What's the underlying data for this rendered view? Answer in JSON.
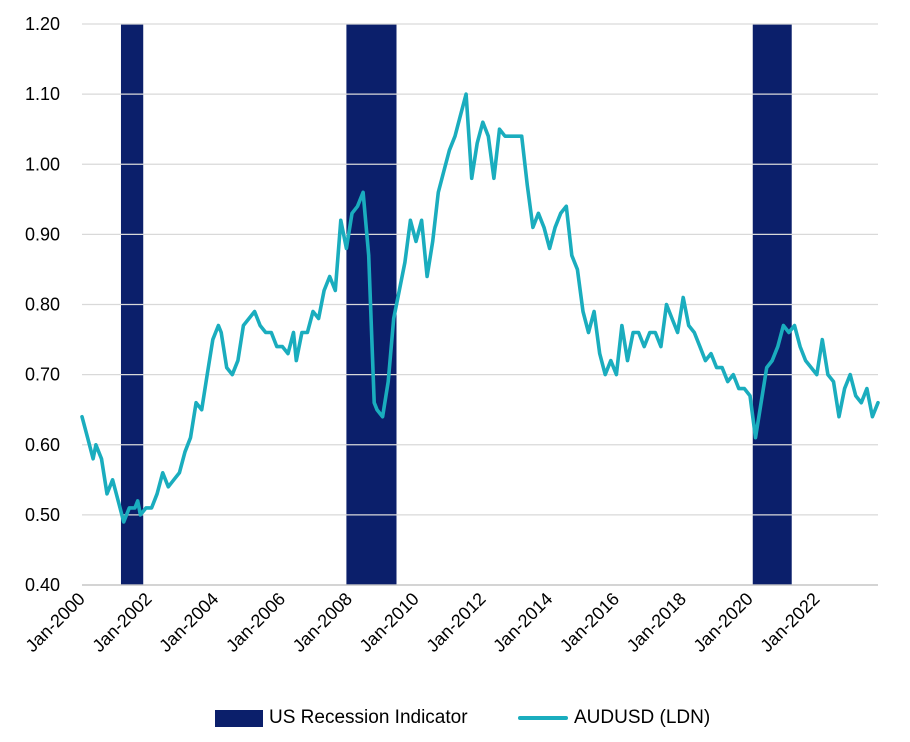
{
  "chart_data": {
    "type": "line",
    "title": "",
    "xlabel": "",
    "ylabel": "",
    "ylim": [
      0.4,
      1.2
    ],
    "y_ticks": [
      "0.40",
      "0.50",
      "0.60",
      "0.70",
      "0.80",
      "0.90",
      "1.00",
      "1.10",
      "1.20"
    ],
    "x_range": [
      "2000-01",
      "2023-11"
    ],
    "x_ticks": [
      "Jan-2000",
      "Jan-2002",
      "Jan-2004",
      "Jan-2006",
      "Jan-2008",
      "Jan-2010",
      "Jan-2012",
      "Jan-2014",
      "Jan-2016",
      "Jan-2018",
      "Jan-2020",
      "Jan-2022"
    ],
    "grid": "horizontal",
    "legend_position": "bottom",
    "recession_periods": [
      {
        "start": "2001-03",
        "end": "2001-11"
      },
      {
        "start": "2007-12",
        "end": "2009-06"
      },
      {
        "start": "2020-02",
        "end": "2021-04"
      }
    ],
    "series": [
      {
        "name": "AUDUSD (LDN)",
        "color": "#1AADBE",
        "points": [
          [
            "2000-01",
            0.64
          ],
          [
            "2000-03",
            0.61
          ],
          [
            "2000-05",
            0.58
          ],
          [
            "2000-06",
            0.6
          ],
          [
            "2000-08",
            0.58
          ],
          [
            "2000-10",
            0.53
          ],
          [
            "2000-12",
            0.55
          ],
          [
            "2001-02",
            0.52
          ],
          [
            "2001-04",
            0.49
          ],
          [
            "2001-06",
            0.51
          ],
          [
            "2001-08",
            0.51
          ],
          [
            "2001-09",
            0.52
          ],
          [
            "2001-10",
            0.5
          ],
          [
            "2001-12",
            0.51
          ],
          [
            "2002-02",
            0.51
          ],
          [
            "2002-04",
            0.53
          ],
          [
            "2002-06",
            0.56
          ],
          [
            "2002-08",
            0.54
          ],
          [
            "2002-10",
            0.55
          ],
          [
            "2002-12",
            0.56
          ],
          [
            "2003-02",
            0.59
          ],
          [
            "2003-04",
            0.61
          ],
          [
            "2003-06",
            0.66
          ],
          [
            "2003-08",
            0.65
          ],
          [
            "2003-10",
            0.7
          ],
          [
            "2003-12",
            0.75
          ],
          [
            "2004-02",
            0.77
          ],
          [
            "2004-03",
            0.76
          ],
          [
            "2004-05",
            0.71
          ],
          [
            "2004-07",
            0.7
          ],
          [
            "2004-09",
            0.72
          ],
          [
            "2004-11",
            0.77
          ],
          [
            "2005-01",
            0.78
          ],
          [
            "2005-03",
            0.79
          ],
          [
            "2005-05",
            0.77
          ],
          [
            "2005-07",
            0.76
          ],
          [
            "2005-09",
            0.76
          ],
          [
            "2005-11",
            0.74
          ],
          [
            "2006-01",
            0.74
          ],
          [
            "2006-03",
            0.73
          ],
          [
            "2006-05",
            0.76
          ],
          [
            "2006-06",
            0.72
          ],
          [
            "2006-08",
            0.76
          ],
          [
            "2006-10",
            0.76
          ],
          [
            "2006-12",
            0.79
          ],
          [
            "2007-02",
            0.78
          ],
          [
            "2007-04",
            0.82
          ],
          [
            "2007-06",
            0.84
          ],
          [
            "2007-08",
            0.82
          ],
          [
            "2007-10",
            0.92
          ],
          [
            "2007-12",
            0.88
          ],
          [
            "2008-02",
            0.93
          ],
          [
            "2008-04",
            0.94
          ],
          [
            "2008-06",
            0.96
          ],
          [
            "2008-08",
            0.87
          ],
          [
            "2008-10",
            0.66
          ],
          [
            "2008-11",
            0.65
          ],
          [
            "2009-01",
            0.64
          ],
          [
            "2009-03",
            0.69
          ],
          [
            "2009-05",
            0.78
          ],
          [
            "2009-07",
            0.82
          ],
          [
            "2009-09",
            0.86
          ],
          [
            "2009-11",
            0.92
          ],
          [
            "2010-01",
            0.89
          ],
          [
            "2010-03",
            0.92
          ],
          [
            "2010-05",
            0.84
          ],
          [
            "2010-07",
            0.89
          ],
          [
            "2010-09",
            0.96
          ],
          [
            "2010-11",
            0.99
          ],
          [
            "2011-01",
            1.02
          ],
          [
            "2011-03",
            1.04
          ],
          [
            "2011-05",
            1.07
          ],
          [
            "2011-07",
            1.1
          ],
          [
            "2011-09",
            0.98
          ],
          [
            "2011-11",
            1.03
          ],
          [
            "2012-01",
            1.06
          ],
          [
            "2012-03",
            1.04
          ],
          [
            "2012-05",
            0.98
          ],
          [
            "2012-07",
            1.05
          ],
          [
            "2012-09",
            1.04
          ],
          [
            "2012-11",
            1.04
          ],
          [
            "2013-01",
            1.04
          ],
          [
            "2013-03",
            1.04
          ],
          [
            "2013-05",
            0.97
          ],
          [
            "2013-07",
            0.91
          ],
          [
            "2013-09",
            0.93
          ],
          [
            "2013-11",
            0.91
          ],
          [
            "2014-01",
            0.88
          ],
          [
            "2014-03",
            0.91
          ],
          [
            "2014-05",
            0.93
          ],
          [
            "2014-07",
            0.94
          ],
          [
            "2014-09",
            0.87
          ],
          [
            "2014-11",
            0.85
          ],
          [
            "2015-01",
            0.79
          ],
          [
            "2015-03",
            0.76
          ],
          [
            "2015-05",
            0.79
          ],
          [
            "2015-07",
            0.73
          ],
          [
            "2015-09",
            0.7
          ],
          [
            "2015-11",
            0.72
          ],
          [
            "2016-01",
            0.7
          ],
          [
            "2016-03",
            0.77
          ],
          [
            "2016-05",
            0.72
          ],
          [
            "2016-07",
            0.76
          ],
          [
            "2016-09",
            0.76
          ],
          [
            "2016-11",
            0.74
          ],
          [
            "2017-01",
            0.76
          ],
          [
            "2017-03",
            0.76
          ],
          [
            "2017-05",
            0.74
          ],
          [
            "2017-07",
            0.8
          ],
          [
            "2017-09",
            0.78
          ],
          [
            "2017-11",
            0.76
          ],
          [
            "2018-01",
            0.81
          ],
          [
            "2018-03",
            0.77
          ],
          [
            "2018-05",
            0.76
          ],
          [
            "2018-07",
            0.74
          ],
          [
            "2018-09",
            0.72
          ],
          [
            "2018-11",
            0.73
          ],
          [
            "2019-01",
            0.71
          ],
          [
            "2019-03",
            0.71
          ],
          [
            "2019-05",
            0.69
          ],
          [
            "2019-07",
            0.7
          ],
          [
            "2019-09",
            0.68
          ],
          [
            "2019-11",
            0.68
          ],
          [
            "2020-01",
            0.67
          ],
          [
            "2020-03",
            0.61
          ],
          [
            "2020-05",
            0.66
          ],
          [
            "2020-07",
            0.71
          ],
          [
            "2020-09",
            0.72
          ],
          [
            "2020-11",
            0.74
          ],
          [
            "2021-01",
            0.77
          ],
          [
            "2021-03",
            0.76
          ],
          [
            "2021-05",
            0.77
          ],
          [
            "2021-07",
            0.74
          ],
          [
            "2021-09",
            0.72
          ],
          [
            "2021-11",
            0.71
          ],
          [
            "2022-01",
            0.7
          ],
          [
            "2022-03",
            0.75
          ],
          [
            "2022-05",
            0.7
          ],
          [
            "2022-07",
            0.69
          ],
          [
            "2022-09",
            0.64
          ],
          [
            "2022-11",
            0.68
          ],
          [
            "2023-01",
            0.7
          ],
          [
            "2023-03",
            0.67
          ],
          [
            "2023-05",
            0.66
          ],
          [
            "2023-07",
            0.68
          ],
          [
            "2023-09",
            0.64
          ],
          [
            "2023-11",
            0.66
          ]
        ]
      }
    ],
    "recession_color": "#0B1F6B",
    "grid_color": "#D9D9D9",
    "legend": {
      "recession_label": "US Recession Indicator",
      "line_label": "AUDUSD (LDN)"
    }
  }
}
